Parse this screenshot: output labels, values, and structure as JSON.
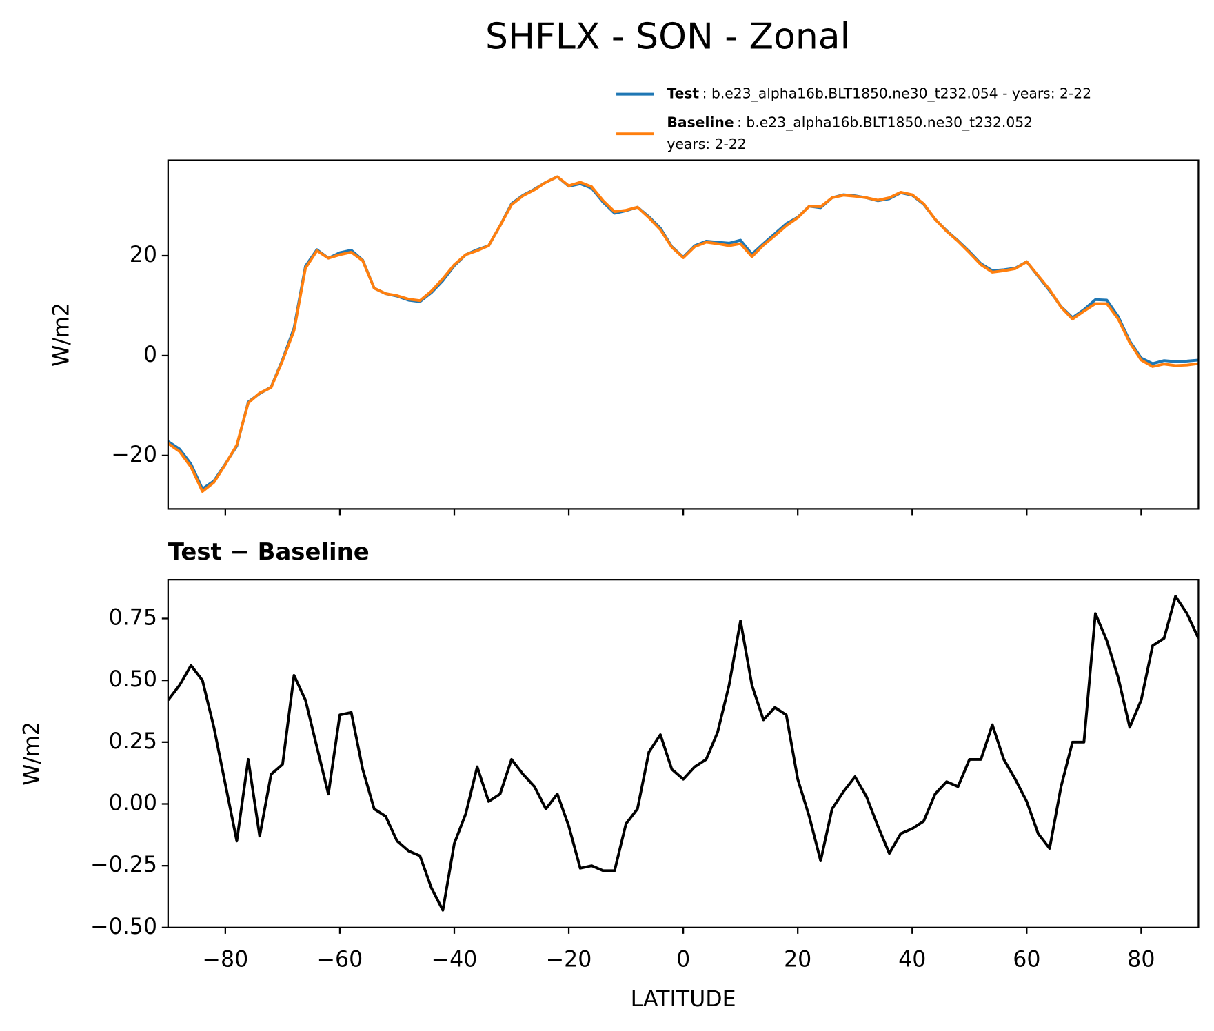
{
  "chart_data": [
    {
      "type": "line",
      "title": "SHFLX - SON - Zonal",
      "ylabel": "W/m2",
      "x": [
        -90,
        -88,
        -86,
        -84,
        -82,
        -80,
        -78,
        -76,
        -74,
        -72,
        -70,
        -68,
        -66,
        -64,
        -62,
        -60,
        -58,
        -56,
        -54,
        -52,
        -50,
        -48,
        -46,
        -44,
        -42,
        -40,
        -38,
        -36,
        -34,
        -32,
        -30,
        -28,
        -26,
        -24,
        -22,
        -20,
        -18,
        -16,
        -14,
        -12,
        -10,
        -8,
        -6,
        -4,
        -2,
        0,
        2,
        4,
        6,
        8,
        10,
        12,
        14,
        16,
        18,
        20,
        22,
        24,
        26,
        28,
        30,
        32,
        34,
        36,
        38,
        40,
        42,
        44,
        46,
        48,
        50,
        52,
        54,
        56,
        58,
        60,
        62,
        64,
        66,
        68,
        70,
        72,
        74,
        76,
        78,
        80,
        82,
        84,
        86,
        88,
        90
      ],
      "series": [
        {
          "name": "Test",
          "legend_text": [
            ": b.e23_alpha16b.BLT1850.ne30_t232.054 - years: 2-22"
          ],
          "color": "#1f77b4",
          "values": [
            -17.2,
            -18.7,
            -21.7,
            -26.7,
            -25.1,
            -21.7,
            -18.1,
            -9.3,
            -7.6,
            -6.3,
            -0.8,
            5.5,
            17.9,
            21.2,
            19.5,
            20.6,
            21.1,
            19.1,
            13.5,
            12.4,
            11.9,
            11.1,
            10.8,
            12.6,
            15,
            18,
            20.2,
            21.2,
            22,
            26,
            30.4,
            32.1,
            33.3,
            34.7,
            35.8,
            33.9,
            34.4,
            33.5,
            30.7,
            28.5,
            29,
            29.7,
            27.8,
            25.5,
            21.8,
            19.7,
            22,
            22.9,
            22.7,
            22.5,
            23.1,
            20.3,
            22.4,
            24.4,
            26.4,
            27.7,
            29.9,
            29.6,
            31.6,
            32.2,
            32,
            31.6,
            31,
            31.4,
            32.6,
            32.1,
            30.3,
            27.3,
            25,
            23,
            20.8,
            18.4,
            17,
            17.2,
            17.5,
            18.8,
            15.9,
            13,
            9.8,
            7.6,
            9.2,
            11.2,
            11.1,
            7.8,
            2.9,
            -0.5,
            -1.6,
            -1,
            -1.2,
            -1.1,
            -0.9
          ]
        },
        {
          "name": "Baseline",
          "legend_text": [
            ": b.e23_alpha16b.BLT1850.ne30_t232.052",
            "years: 2-22"
          ],
          "color": "#ff7f0e",
          "values": [
            -17.6,
            -19.2,
            -22.3,
            -27.2,
            -25.4,
            -21.8,
            -17.9,
            -9.5,
            -7.5,
            -6.4,
            -1,
            5,
            17.5,
            21,
            19.5,
            20.2,
            20.7,
            19,
            13.5,
            12.4,
            12,
            11.3,
            11,
            12.9,
            15.4,
            18.2,
            20.2,
            21,
            22,
            26,
            30.2,
            32,
            33.2,
            34.7,
            35.8,
            34,
            34.7,
            33.8,
            31,
            28.8,
            29.1,
            29.7,
            27.6,
            25.2,
            21.7,
            19.6,
            21.8,
            22.7,
            22.4,
            22,
            22.4,
            19.8,
            22.1,
            24,
            26,
            27.6,
            29.9,
            29.8,
            31.6,
            32.1,
            31.9,
            31.6,
            31.1,
            31.6,
            32.7,
            32.2,
            30.4,
            27.3,
            24.9,
            22.9,
            20.6,
            18.2,
            16.7,
            17,
            17.4,
            18.8,
            16,
            13.2,
            9.7,
            7.3,
            8.9,
            10.4,
            10.4,
            7.3,
            2.6,
            -0.9,
            -2.2,
            -1.7,
            -2,
            -1.9,
            -1.6
          ]
        }
      ],
      "xlim": [
        -90,
        90
      ],
      "ylim": [
        -30.7,
        39.1
      ],
      "yticks": [
        {
          "value": -20,
          "label": "−20"
        },
        0,
        20
      ]
    },
    {
      "type": "line",
      "title": "Test − Baseline",
      "ylabel": "W/m2",
      "xlabel": "LATITUDE",
      "x": [
        -90,
        -88,
        -86,
        -84,
        -82,
        -80,
        -78,
        -76,
        -74,
        -72,
        -70,
        -68,
        -66,
        -64,
        -62,
        -60,
        -58,
        -56,
        -54,
        -52,
        -50,
        -48,
        -46,
        -44,
        -42,
        -40,
        -38,
        -36,
        -34,
        -32,
        -30,
        -28,
        -26,
        -24,
        -22,
        -20,
        -18,
        -16,
        -14,
        -12,
        -10,
        -8,
        -6,
        -4,
        -2,
        0,
        2,
        4,
        6,
        8,
        10,
        12,
        14,
        16,
        18,
        20,
        22,
        24,
        26,
        28,
        30,
        32,
        34,
        36,
        38,
        40,
        42,
        44,
        46,
        48,
        50,
        52,
        54,
        56,
        58,
        60,
        62,
        64,
        66,
        68,
        70,
        72,
        74,
        76,
        78,
        80,
        82,
        84,
        86,
        88,
        90
      ],
      "series": [
        {
          "color": "#000000",
          "values": [
            0.42,
            0.48,
            0.56,
            0.5,
            0.31,
            0.08,
            -0.15,
            0.18,
            -0.13,
            0.12,
            0.16,
            0.52,
            0.42,
            0.23,
            0.04,
            0.36,
            0.37,
            0.14,
            -0.02,
            -0.05,
            -0.15,
            -0.19,
            -0.21,
            -0.34,
            -0.43,
            -0.16,
            -0.04,
            0.15,
            0.01,
            0.04,
            0.18,
            0.12,
            0.07,
            -0.02,
            0.04,
            -0.09,
            -0.26,
            -0.25,
            -0.27,
            -0.27,
            -0.08,
            -0.02,
            0.21,
            0.28,
            0.14,
            0.1,
            0.15,
            0.18,
            0.29,
            0.48,
            0.74,
            0.48,
            0.34,
            0.39,
            0.36,
            0.1,
            -0.05,
            -0.23,
            -0.02,
            0.05,
            0.11,
            0.03,
            -0.09,
            -0.2,
            -0.12,
            -0.1,
            -0.07,
            0.04,
            0.09,
            0.07,
            0.18,
            0.18,
            0.32,
            0.18,
            0.1,
            0.01,
            -0.12,
            -0.18,
            0.07,
            0.25,
            0.25,
            0.77,
            0.66,
            0.51,
            0.31,
            0.42,
            0.64,
            0.67,
            0.84,
            0.77,
            0.67
          ]
        }
      ],
      "xlim": [
        -90,
        90
      ],
      "ylim": [
        -0.5,
        0.907
      ],
      "xticks": [
        {
          "value": -80,
          "label": "−80"
        },
        {
          "value": -60,
          "label": "−60"
        },
        {
          "value": -40,
          "label": "−40"
        },
        {
          "value": -20,
          "label": "−20"
        },
        0,
        20,
        40,
        60,
        80
      ],
      "yticks": [
        {
          "value": -0.5,
          "label": "−0.50"
        },
        {
          "value": -0.25,
          "label": "−0.25"
        },
        {
          "value": 0,
          "label": "0.00"
        },
        {
          "value": 0.25,
          "label": "0.25"
        },
        {
          "value": 0.5,
          "label": "0.50"
        },
        {
          "value": 0.75,
          "label": "0.75"
        }
      ]
    }
  ]
}
